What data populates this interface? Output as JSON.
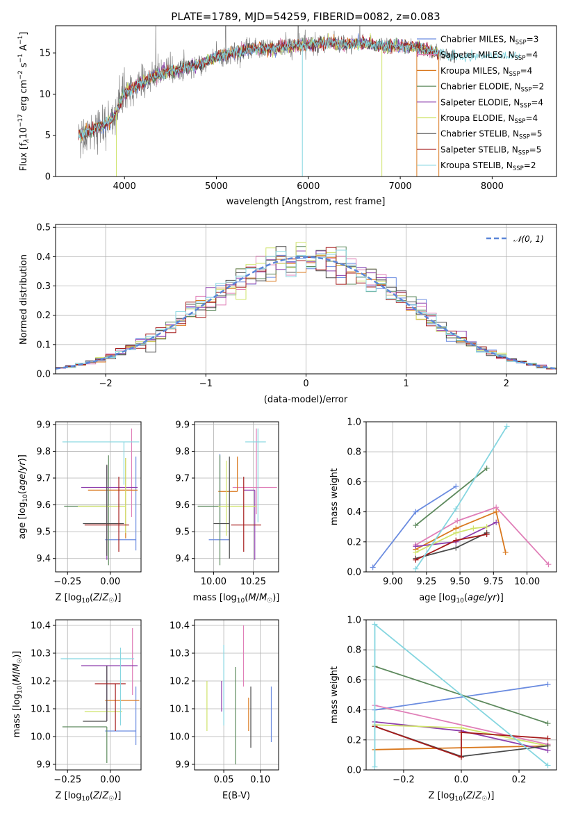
{
  "chart_data": [
    {
      "type": "line",
      "id": "spectrum",
      "title": "PLATE=1789, MJD=54259, FIBERID=0082, z=0.083",
      "xlabel": "wavelength [Angstrom, rest frame]",
      "ylabel": "Flux [f_λ 10^-17 erg cm^-2 s^-1 A^-1]",
      "xlim": [
        3250,
        8700
      ],
      "ylim": [
        0,
        18.3
      ],
      "xticks": [
        4000,
        5000,
        6000,
        7000,
        8000
      ],
      "yticks": [
        0,
        5,
        10,
        15
      ],
      "grid": false,
      "legend_position": "right",
      "data_series": {
        "name": "data",
        "color": "#808080"
      },
      "continuum": {
        "x": [
          3500,
          3600,
          3700,
          3800,
          3900,
          4000,
          4200,
          4400,
          4600,
          4800,
          5000,
          5200,
          5400,
          5600,
          5800,
          6000,
          6200,
          6400,
          6600,
          6800,
          7000,
          7200,
          7400,
          7600
        ],
        "y": [
          5.0,
          5.4,
          6.0,
          6.3,
          7.5,
          10.0,
          11.5,
          12.5,
          13.0,
          13.5,
          14.5,
          15.0,
          15.5,
          15.5,
          15.8,
          16.0,
          16.3,
          16.0,
          16.2,
          15.8,
          15.8,
          15.7,
          15.0,
          14.5
        ]
      },
      "series": [
        {
          "name": "Chabrier MILES, N_SSP=3",
          "color": "#6b8ce0"
        },
        {
          "name": "Salpeter MILES, N_SSP=4",
          "color": "#e07fb8"
        },
        {
          "name": "Kroupa MILES, N_SSP=4",
          "color": "#d9781e"
        },
        {
          "name": "Chabrier ELODIE, N_SSP=2",
          "color": "#5e8a5e"
        },
        {
          "name": "Salpeter ELODIE, N_SSP=4",
          "color": "#8e3fad"
        },
        {
          "name": "Kroupa ELODIE, N_SSP=4",
          "color": "#cfe36b"
        },
        {
          "name": "Chabrier STELIB, N_SSP=5",
          "color": "#4a4a4a"
        },
        {
          "name": "Salpeter STELIB, N_SSP=5",
          "color": "#a61c1c"
        },
        {
          "name": "Kroupa STELIB, N_SSP=2",
          "color": "#85d6e0"
        }
      ]
    },
    {
      "type": "histogram",
      "id": "residuals",
      "xlabel": "(data-model)/error",
      "ylabel": "Normed distribution",
      "xlim": [
        -2.5,
        2.5
      ],
      "ylim": [
        0,
        0.51
      ],
      "xticks": [
        -2,
        -1,
        0,
        1,
        2
      ],
      "yticks": [
        0.0,
        0.1,
        0.2,
        0.3,
        0.4,
        0.5
      ],
      "grid": true,
      "legend_position": "top-right",
      "reference_curve": {
        "name": "N(0,1)",
        "color": "#5b86d8",
        "style": "dashed"
      },
      "bin_width": 0.1
    },
    {
      "type": "scatter",
      "id": "age_vs_Z",
      "xlabel": "Z [log10(Z/Z☉)]",
      "ylabel": "age [log10(age/yr)]",
      "xlim": [
        -0.32,
        0.18
      ],
      "ylim": [
        9.35,
        9.91
      ],
      "xticks": [
        -0.25,
        0.0
      ],
      "yticks": [
        9.4,
        9.5,
        9.6,
        9.7,
        9.8,
        9.9
      ],
      "grid": true,
      "errorbars": [
        {
          "color": "#6b8ce0",
          "x": 0.15,
          "xerr": [
            0.18,
            0.0
          ],
          "y": 9.47,
          "yerr": [
            0.04,
            0.31
          ]
        },
        {
          "color": "#e07fb8",
          "x": 0.125,
          "xerr": [
            0.13,
            0.0
          ],
          "y": 9.655,
          "yerr": [
            0.1,
            0.23
          ]
        },
        {
          "color": "#d9781e",
          "x": 0.09,
          "xerr": [
            0.22,
            0.07
          ],
          "y": 9.655,
          "yerr": [
            0.18,
            0.12
          ]
        },
        {
          "color": "#5e8a5e",
          "x": -0.01,
          "xerr": [
            0.26,
            0.0
          ],
          "y": 9.595,
          "yerr": [
            0.22,
            0.19
          ]
        },
        {
          "color": "#8e3fad",
          "x": -0.02,
          "xerr": [
            0.15,
            0.18
          ],
          "y": 9.665,
          "yerr": [
            0.27,
            0.08
          ]
        },
        {
          "color": "#cfe36b",
          "x": 0.09,
          "xerr": [
            0.28,
            0.0
          ],
          "y": 9.595,
          "yerr": [
            0.1,
            0.18
          ]
        },
        {
          "color": "#4a4a4a",
          "x": -0.02,
          "xerr": [
            0.14,
            0.1
          ],
          "y": 9.53,
          "yerr": [
            0.12,
            0.22
          ]
        },
        {
          "color": "#a61c1c",
          "x": 0.05,
          "xerr": [
            0.2,
            0.06
          ],
          "y": 9.525,
          "yerr": [
            0.1,
            0.18
          ]
        },
        {
          "color": "#85d6e0",
          "x": 0.08,
          "xerr": [
            0.36,
            0.09
          ],
          "y": 9.835,
          "yerr": [
            0.16,
            0.0
          ]
        }
      ]
    },
    {
      "type": "scatter",
      "id": "age_vs_mass",
      "xlabel": "mass [log10(M/M☉)]",
      "ylabel": "",
      "xlim": [
        9.88,
        10.41
      ],
      "ylim": [
        9.35,
        9.91
      ],
      "xticks": [
        10.0,
        10.25
      ],
      "yticks": [
        9.4,
        9.5,
        9.6,
        9.7,
        9.8,
        9.9
      ],
      "grid": true,
      "errorbars": [
        {
          "color": "#6b8ce0",
          "x": 10.04,
          "xerr": [
            0.07,
            0.06
          ],
          "y": 9.47,
          "yerr": [
            0.0,
            0.32
          ]
        },
        {
          "color": "#e07fb8",
          "x": 10.27,
          "xerr": [
            0.15,
            0.13
          ],
          "y": 9.665,
          "yerr": [
            0.1,
            0.22
          ]
        },
        {
          "color": "#d9781e",
          "x": 10.15,
          "xerr": [
            0.12,
            0.0
          ],
          "y": 9.65,
          "yerr": [
            0.0,
            0.13
          ]
        },
        {
          "color": "#5e8a5e",
          "x": 10.04,
          "xerr": [
            0.14,
            0.0
          ],
          "y": 9.595,
          "yerr": [
            0.22,
            0.19
          ]
        },
        {
          "color": "#8e3fad",
          "x": 10.26,
          "xerr": [
            0.07,
            0.0
          ],
          "y": 9.655,
          "yerr": [
            0.26,
            0.0
          ]
        },
        {
          "color": "#cfe36b",
          "x": 10.08,
          "xerr": [
            0.05,
            0.19
          ],
          "y": 9.595,
          "yerr": [
            0.11,
            0.17
          ]
        },
        {
          "color": "#4a4a4a",
          "x": 10.1,
          "xerr": [
            0.1,
            0.0
          ],
          "y": 9.53,
          "yerr": [
            0.13,
            0.25
          ]
        },
        {
          "color": "#a61c1c",
          "x": 10.19,
          "xerr": [
            0.08,
            0.11
          ],
          "y": 9.525,
          "yerr": [
            0.1,
            0.18
          ]
        },
        {
          "color": "#85d6e0",
          "x": 10.28,
          "xerr": [
            0.08,
            0.05
          ],
          "y": 9.835,
          "yerr": [
            0.3,
            0.05
          ]
        }
      ]
    },
    {
      "type": "line",
      "id": "massweight_vs_age",
      "xlabel": "age [log10(age/yr)]",
      "ylabel": "mass weight",
      "xlim": [
        8.8,
        10.22
      ],
      "ylim": [
        0.0,
        1.0
      ],
      "xticks": [
        9.0,
        9.25,
        9.5,
        9.75,
        10.0
      ],
      "yticks": [
        0.0,
        0.2,
        0.4,
        0.6,
        0.8,
        1.0
      ],
      "grid": true,
      "series": [
        {
          "color": "#6b8ce0",
          "x": [
            8.85,
            9.17,
            9.47
          ],
          "y": [
            0.03,
            0.4,
            0.57
          ]
        },
        {
          "color": "#e07fb8",
          "x": [
            9.17,
            9.48,
            9.77,
            10.16
          ],
          "y": [
            0.18,
            0.34,
            0.43,
            0.05
          ]
        },
        {
          "color": "#d9781e",
          "x": [
            9.17,
            9.47,
            9.77,
            9.84
          ],
          "y": [
            0.15,
            0.29,
            0.4,
            0.13
          ]
        },
        {
          "color": "#5e8a5e",
          "x": [
            9.17,
            9.7
          ],
          "y": [
            0.31,
            0.69
          ]
        },
        {
          "color": "#8e3fad",
          "x": [
            9.17,
            9.47,
            9.77
          ],
          "y": [
            0.17,
            0.2,
            0.33
          ]
        },
        {
          "color": "#cfe36b",
          "x": [
            9.17,
            9.47,
            9.6,
            9.7
          ],
          "y": [
            0.13,
            0.26,
            0.29,
            0.3
          ]
        },
        {
          "color": "#4a4a4a",
          "x": [
            9.17,
            9.47,
            9.7
          ],
          "y": [
            0.09,
            0.16,
            0.26
          ]
        },
        {
          "color": "#a61c1c",
          "x": [
            9.17,
            9.47,
            9.7
          ],
          "y": [
            0.08,
            0.21,
            0.25
          ]
        },
        {
          "color": "#85d6e0",
          "x": [
            9.17,
            9.47,
            9.85
          ],
          "y": [
            0.02,
            0.42,
            0.97
          ]
        }
      ]
    },
    {
      "type": "scatter",
      "id": "mass_vs_Z",
      "xlabel": "Z [log10(Z/Z☉)]",
      "ylabel": "mass [log10(M/M☉)]",
      "xlim": [
        -0.32,
        0.18
      ],
      "ylim": [
        9.88,
        10.42
      ],
      "xticks": [
        -0.25,
        0.0
      ],
      "yticks": [
        9.9,
        10.0,
        10.1,
        10.2,
        10.3,
        10.4
      ],
      "grid": true,
      "errorbars": [
        {
          "color": "#6b8ce0",
          "x": 0.15,
          "xerr": [
            0.18,
            0.0
          ],
          "y": 10.02,
          "yerr": [
            0.05,
            0.16
          ]
        },
        {
          "color": "#e07fb8",
          "x": 0.13,
          "xerr": [
            0.0,
            0.0
          ],
          "y": 10.29,
          "yerr": [
            0.14,
            0.1
          ]
        },
        {
          "color": "#d9781e",
          "x": 0.07,
          "xerr": [
            0.1,
            0.1
          ],
          "y": 10.13,
          "yerr": [
            0.0,
            0.0
          ]
        },
        {
          "color": "#5e8a5e",
          "x": -0.02,
          "xerr": [
            0.26,
            0.0
          ],
          "y": 10.035,
          "yerr": [
            0.13,
            0.0
          ]
        },
        {
          "color": "#8e3fad",
          "x": -0.02,
          "xerr": [
            0.15,
            0.18
          ],
          "y": 10.255,
          "yerr": [
            0.2,
            0.0
          ]
        },
        {
          "color": "#cfe36b",
          "x": -0.03,
          "xerr": [
            0.12,
            0.1
          ],
          "y": 10.09,
          "yerr": [
            0.0,
            0.0
          ]
        },
        {
          "color": "#4a4a4a",
          "x": -0.02,
          "xerr": [
            0.14,
            0.0
          ],
          "y": 10.055,
          "yerr": [
            0.0,
            0.2
          ]
        },
        {
          "color": "#a61c1c",
          "x": 0.03,
          "xerr": [
            0.12,
            0.06
          ],
          "y": 10.19,
          "yerr": [
            0.17,
            0.0
          ]
        },
        {
          "color": "#85d6e0",
          "x": 0.06,
          "xerr": [
            0.35,
            0.08
          ],
          "y": 10.28,
          "yerr": [
            0.24,
            0.04
          ]
        }
      ]
    },
    {
      "type": "scatter",
      "id": "mass_vs_ebv",
      "xlabel": "E(B-V)",
      "ylabel": "",
      "xlim": [
        0.01,
        0.125
      ],
      "ylim": [
        9.88,
        10.42
      ],
      "xticks": [
        0.05,
        0.1
      ],
      "yticks": [
        9.9,
        10.0,
        10.1,
        10.2,
        10.3,
        10.4
      ],
      "grid": true,
      "errorbars": [
        {
          "color": "#6b8ce0",
          "x": 0.115,
          "y": 10.0,
          "yerr": [
            0.02,
            0.18
          ]
        },
        {
          "color": "#e07fb8",
          "x": 0.077,
          "y": 10.3,
          "yerr": [
            0.12,
            0.1
          ]
        },
        {
          "color": "#d9781e",
          "x": 0.084,
          "y": 10.14,
          "yerr": [
            0.12,
            0.0
          ]
        },
        {
          "color": "#5e8a5e",
          "x": 0.066,
          "y": 10.03,
          "yerr": [
            0.13,
            0.22
          ]
        },
        {
          "color": "#8e3fad",
          "x": 0.047,
          "y": 10.2,
          "yerr": [
            0.11,
            0.0
          ]
        },
        {
          "color": "#cfe36b",
          "x": 0.027,
          "y": 10.1,
          "yerr": [
            0.08,
            0.1
          ]
        },
        {
          "color": "#4a4a4a",
          "x": 0.087,
          "y": 10.08,
          "yerr": [
            0.12,
            0.1
          ]
        },
        {
          "color": "#a61c1c",
          "x": 0.081,
          "y": 10.2,
          "yerr": [
            0.0,
            0.0
          ]
        },
        {
          "color": "#85d6e0",
          "x": 0.05,
          "y": 10.16,
          "yerr": [
            0.12,
            0.17
          ]
        }
      ]
    },
    {
      "type": "line",
      "id": "massweight_vs_Z",
      "xlabel": "Z [log10(Z/Z☉)]",
      "ylabel": "mass weight",
      "xlim": [
        -0.33,
        0.33
      ],
      "ylim": [
        0.0,
        1.0
      ],
      "xticks": [
        -0.2,
        0.0,
        0.2
      ],
      "yticks": [
        0.0,
        0.2,
        0.4,
        0.6,
        0.8,
        1.0
      ],
      "grid": true,
      "series": [
        {
          "color": "#6b8ce0",
          "x": [
            -0.3,
            0.3
          ],
          "y": [
            0.4,
            0.57
          ]
        },
        {
          "color": "#e07fb8",
          "x": [
            -0.3,
            0.3
          ],
          "y": [
            0.43,
            0.17
          ]
        },
        {
          "color": "#d9781e",
          "x": [
            -0.3,
            0.3
          ],
          "y": [
            0.135,
            0.16
          ]
        },
        {
          "color": "#5e8a5e",
          "x": [
            -0.3,
            0.3
          ],
          "y": [
            0.69,
            0.31
          ]
        },
        {
          "color": "#8e3fad",
          "x": [
            -0.3,
            0.0,
            0.3
          ],
          "y": [
            0.32,
            0.26,
            0.13
          ]
        },
        {
          "color": "#cfe36b",
          "x": [
            -0.3,
            0.0,
            0.3
          ],
          "y": [
            0.3,
            0.28,
            0.16
          ]
        },
        {
          "color": "#4a4a4a",
          "x": [
            -0.3,
            0.0,
            0.3
          ],
          "y": [
            0.29,
            0.09,
            0.16
          ]
        },
        {
          "color": "#a61c1c",
          "x": [
            -0.3,
            0.0,
            0.0,
            0.3
          ],
          "y": [
            0.29,
            0.085,
            0.25,
            0.21
          ]
        },
        {
          "color": "#85d6e0",
          "x": [
            -0.3,
            -0.3,
            0.3
          ],
          "y": [
            0.02,
            0.97,
            0.03
          ]
        }
      ]
    }
  ],
  "legend_top": {
    "entries": [
      "Chabrier MILES, N",
      "Salpeter MILES, N",
      "Kroupa MILES, N",
      "Chabrier ELODIE, N",
      "Salpeter ELODIE, N",
      "Kroupa ELODIE, N",
      "Chabrier STELIB, N",
      "Salpeter STELIB, N",
      "Kroupa STELIB, N"
    ],
    "subscript": "SSP",
    "counts": [
      "=3",
      "=4",
      "=4",
      "=2",
      "=4",
      "=4",
      "=5",
      "=5",
      "=2"
    ]
  },
  "legend_hist": {
    "label": "𝒩(0, 1)"
  }
}
